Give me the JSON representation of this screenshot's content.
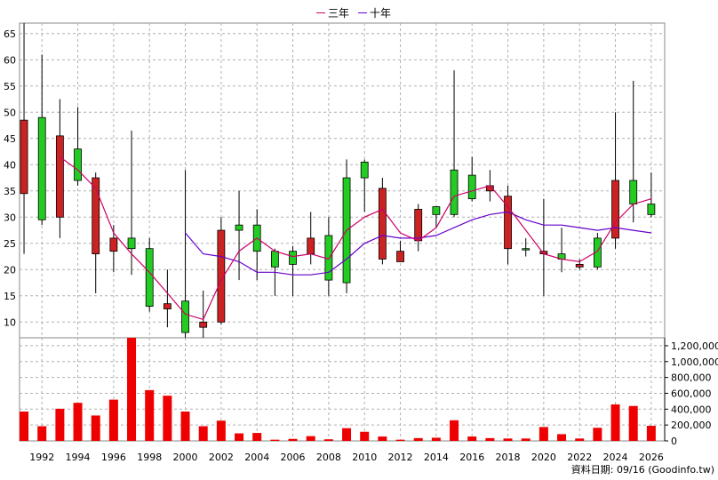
{
  "chart_data": {
    "type": "candlestick",
    "legend": [
      {
        "name": "三年",
        "color": "#cc0066"
      },
      {
        "name": "十年",
        "color": "#6600cc"
      }
    ],
    "footer": "資料日期: 09/16  (Goodinfo.tw)",
    "price_axis": {
      "ylim": [
        7,
        67
      ],
      "ticks": [
        10,
        15,
        20,
        25,
        30,
        35,
        40,
        45,
        50,
        55,
        60,
        65
      ]
    },
    "volume_axis": {
      "ylim": [
        0,
        1300000
      ],
      "ticks": [
        0,
        200000,
        400000,
        600000,
        800000,
        1000000,
        1200000
      ],
      "tick_labels": [
        "0",
        "200,000",
        "400,000",
        "600,000",
        "800,000",
        "1,000,000",
        "1,200,000"
      ]
    },
    "x_axis": {
      "xlim": [
        1990.75,
        2026.75
      ],
      "ticks": [
        1992,
        1994,
        1996,
        1998,
        2000,
        2002,
        2004,
        2006,
        2008,
        2010,
        2012,
        2014,
        2016,
        2018,
        2020,
        2022,
        2024,
        2026
      ]
    },
    "years": [
      1991,
      1992,
      1993,
      1994,
      1995,
      1996,
      1997,
      1998,
      1999,
      2000,
      2001,
      2002,
      2003,
      2004,
      2005,
      2006,
      2007,
      2008,
      2009,
      2010,
      2011,
      2012,
      2013,
      2014,
      2015,
      2016,
      2017,
      2018,
      2019,
      2020,
      2021,
      2022,
      2023,
      2024,
      2025,
      2026
    ],
    "open": [
      48.5,
      29.5,
      45.5,
      37,
      37.5,
      26,
      24,
      13,
      13.5,
      8,
      10,
      27.5,
      27.5,
      23.5,
      20.5,
      21,
      26,
      18,
      17.5,
      37.5,
      35.5,
      23.5,
      31.5,
      30.5,
      30.5,
      33.5,
      36,
      34,
      24,
      23.5,
      22,
      21,
      20.5,
      37,
      32.5,
      30.5
    ],
    "high": [
      67,
      61,
      52.5,
      51,
      38.5,
      28.5,
      46.5,
      26,
      20,
      39,
      16,
      30,
      35,
      31.5,
      24,
      24.5,
      31,
      30,
      41,
      41,
      37.5,
      25.5,
      32.5,
      32,
      58,
      41.5,
      39,
      36,
      26,
      33.5,
      28,
      22,
      27,
      50,
      56,
      38.5
    ],
    "low": [
      23,
      28.5,
      26,
      36,
      15.5,
      19.5,
      19,
      12,
      9,
      7,
      7,
      9.5,
      18,
      18,
      15,
      15,
      21,
      15,
      15.5,
      31,
      21,
      21.5,
      23.5,
      28,
      30,
      33,
      33,
      21,
      22.5,
      15,
      19.5,
      20,
      20,
      24,
      29,
      30
    ],
    "close": [
      34.5,
      49,
      30,
      43,
      23,
      23.5,
      26,
      24,
      12.5,
      14,
      9,
      10,
      28.5,
      28.5,
      23.5,
      23.5,
      23,
      26.5,
      37.5,
      40.5,
      22,
      21.5,
      25.5,
      32,
      39,
      38,
      35,
      24,
      24,
      23,
      23,
      20.5,
      26,
      26,
      37,
      32.5
    ],
    "ma_3yr": [
      null,
      null,
      41.5,
      39,
      35.5,
      27,
      23,
      19.5,
      15.5,
      11.5,
      10.5,
      18,
      23.5,
      26,
      23.5,
      22.5,
      23,
      22,
      27.5,
      30,
      31.5,
      27,
      25.5,
      28,
      34,
      35,
      36,
      32,
      27.5,
      23,
      22,
      21.5,
      23.5,
      29,
      32.5,
      33.5
    ],
    "ma_10yr": [
      null,
      null,
      null,
      null,
      null,
      null,
      null,
      null,
      null,
      27,
      23,
      22.5,
      21.5,
      19.5,
      19.5,
      19,
      19,
      19.5,
      22,
      25,
      26.5,
      26,
      26,
      26.5,
      28,
      29.5,
      30.5,
      31,
      29.5,
      28.5,
      28.5,
      28,
      27.5,
      28,
      27.5,
      27
    ],
    "volume": [
      370000,
      185000,
      405000,
      480000,
      320000,
      520000,
      1300000,
      640000,
      570000,
      370000,
      185000,
      255000,
      95000,
      100000,
      15000,
      25000,
      60000,
      20000,
      160000,
      115000,
      55000,
      15000,
      35000,
      40000,
      260000,
      55000,
      35000,
      30000,
      30000,
      175000,
      85000,
      30000,
      165000,
      460000,
      440000,
      190000
    ]
  }
}
